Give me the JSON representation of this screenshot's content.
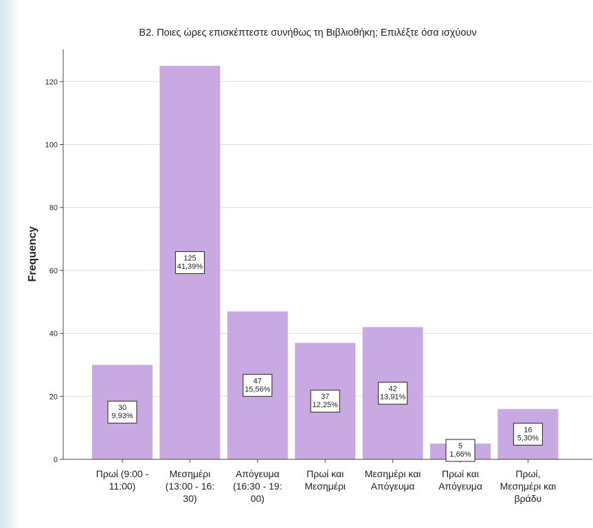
{
  "chart_data": {
    "type": "bar",
    "title": "B2. Ποιες ώρες επισκέπτεστε συνήθως τη Βιβλιοθήκη; Επιλέξτε όσα ισχύουν",
    "xlabel": "",
    "ylabel": "Frequency",
    "ylim": [
      0,
      130
    ],
    "yticks": [
      "0",
      "20",
      "40",
      "60",
      "80",
      "100",
      "120"
    ],
    "categories": [
      [
        "Πρωί (9:00 -",
        "11:00)"
      ],
      [
        "Μεσημέρι",
        "(13:00 - 16:",
        "30)"
      ],
      [
        "Απόγευμα",
        "(16:30 - 19:",
        "00)"
      ],
      [
        "Πρωί και",
        "Μεσημέρι"
      ],
      [
        "Μεσημέρι και",
        "Απόγευμα"
      ],
      [
        "Πρωί και",
        "Απόγευμα"
      ],
      [
        "Πρωί,",
        "Μεσημέρι και",
        "βράδυ"
      ]
    ],
    "values": [
      30,
      125,
      47,
      37,
      42,
      5,
      16
    ],
    "data_labels": [
      [
        "30",
        "9,93%"
      ],
      [
        "125",
        "41,39%"
      ],
      [
        "47",
        "15,56%"
      ],
      [
        "37",
        "12,25%"
      ],
      [
        "42",
        "13,91%"
      ],
      [
        "5",
        "1,66%"
      ],
      [
        "16",
        "5,30%"
      ]
    ],
    "grid": true,
    "colors": {
      "bar": "#c9a9e1",
      "grid": "#dadada",
      "axis": "#444444",
      "text": "#222222"
    }
  }
}
